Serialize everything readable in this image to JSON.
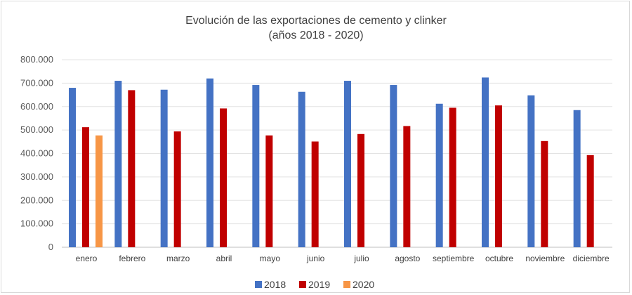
{
  "chart_data": {
    "type": "bar",
    "title_line1": "Evolución de las exportaciones de cemento y clinker",
    "title_line2": "(años 2018 - 2020)",
    "xlabel": "",
    "ylabel": "",
    "ylim": [
      0,
      800000
    ],
    "yticks": [
      0,
      100000,
      200000,
      300000,
      400000,
      500000,
      600000,
      700000,
      800000
    ],
    "ytick_labels": [
      "0",
      "100.000",
      "200.000",
      "300.000",
      "400.000",
      "500.000",
      "600.000",
      "700.000",
      "800.000"
    ],
    "grid": true,
    "legend_position": "bottom",
    "categories": [
      "enero",
      "febrero",
      "marzo",
      "abril",
      "mayo",
      "junio",
      "julio",
      "agosto",
      "septiembre",
      "octubre",
      "noviembre",
      "diciembre"
    ],
    "series": [
      {
        "name": "2018",
        "color": "#4472c4",
        "values": [
          680000,
          710000,
          672000,
          720000,
          692000,
          663000,
          710000,
          692000,
          612000,
          724000,
          648000,
          585000
        ]
      },
      {
        "name": "2019",
        "color": "#c00000",
        "values": [
          512000,
          670000,
          494000,
          592000,
          477000,
          451000,
          483000,
          517000,
          595000,
          605000,
          453000,
          393000
        ]
      },
      {
        "name": "2020",
        "color": "#f79646",
        "values": [
          477000,
          null,
          null,
          null,
          null,
          null,
          null,
          null,
          null,
          null,
          null,
          null
        ]
      }
    ]
  }
}
